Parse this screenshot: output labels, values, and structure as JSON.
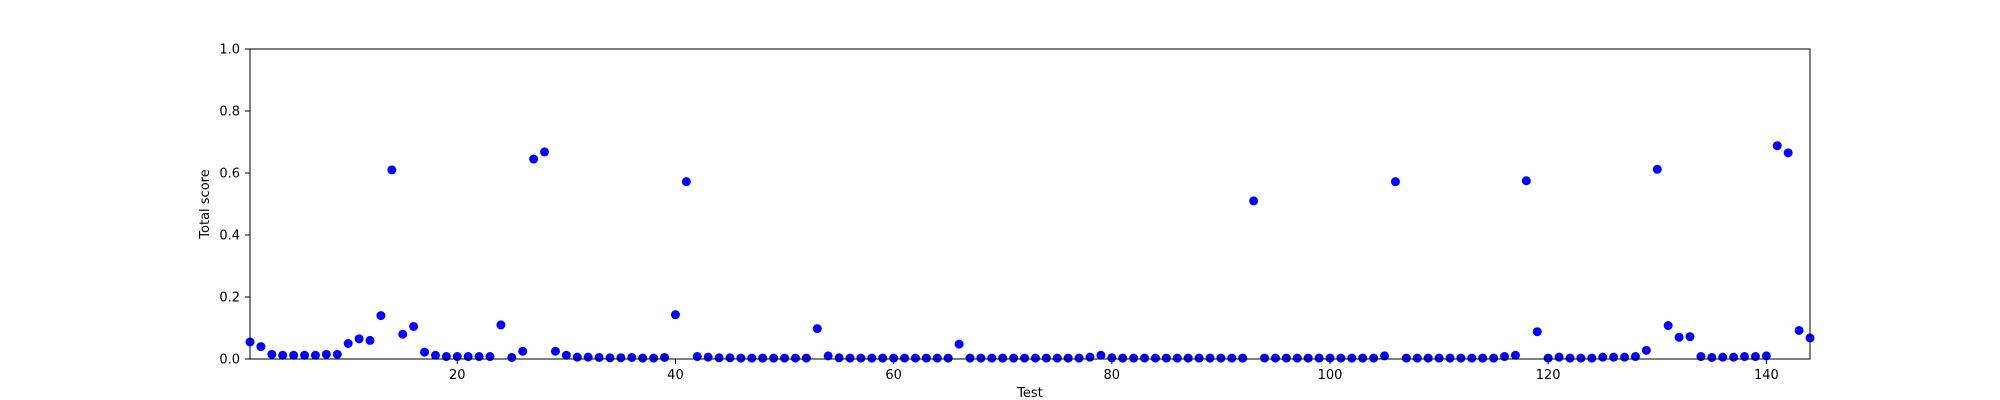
{
  "chart_data": {
    "type": "scatter",
    "xlabel": "Test",
    "ylabel": "Total score",
    "xlim": [
      1,
      144
    ],
    "ylim": [
      0.0,
      1.0
    ],
    "xticks": [
      20,
      40,
      60,
      80,
      100,
      120,
      140
    ],
    "xtick_labels": [
      "20",
      "40",
      "60",
      "80",
      "100",
      "120",
      "140"
    ],
    "yticks": [
      0.0,
      0.2,
      0.4,
      0.6,
      0.8,
      1.0
    ],
    "ytick_labels": [
      "0.0",
      "0.2",
      "0.4",
      "0.6",
      "0.8",
      "1.0"
    ],
    "grid": false,
    "marker_color": "#0000ff",
    "x": [
      1,
      2,
      3,
      4,
      5,
      6,
      7,
      8,
      9,
      10,
      11,
      12,
      13,
      14,
      15,
      16,
      17,
      18,
      19,
      20,
      21,
      22,
      23,
      24,
      25,
      26,
      27,
      28,
      29,
      30,
      31,
      32,
      33,
      34,
      35,
      36,
      37,
      38,
      39,
      40,
      41,
      42,
      43,
      44,
      45,
      46,
      47,
      48,
      49,
      50,
      51,
      52,
      53,
      54,
      55,
      56,
      57,
      58,
      59,
      60,
      61,
      62,
      63,
      64,
      65,
      66,
      67,
      68,
      69,
      70,
      71,
      72,
      73,
      74,
      75,
      76,
      77,
      78,
      79,
      80,
      81,
      82,
      83,
      84,
      85,
      86,
      87,
      88,
      89,
      90,
      91,
      92,
      93,
      94,
      95,
      96,
      97,
      98,
      99,
      100,
      101,
      102,
      103,
      104,
      105,
      106,
      107,
      108,
      109,
      110,
      111,
      112,
      113,
      114,
      115,
      116,
      117,
      118,
      119,
      120,
      121,
      122,
      123,
      124,
      125,
      126,
      127,
      128,
      129,
      130,
      131,
      132,
      133,
      134,
      135,
      136,
      137,
      138,
      139,
      140,
      141,
      142,
      143,
      144
    ],
    "y": [
      0.055,
      0.04,
      0.015,
      0.012,
      0.012,
      0.012,
      0.012,
      0.015,
      0.015,
      0.05,
      0.065,
      0.06,
      0.14,
      0.61,
      0.08,
      0.105,
      0.022,
      0.012,
      0.008,
      0.008,
      0.008,
      0.008,
      0.008,
      0.11,
      0.005,
      0.025,
      0.645,
      0.668,
      0.025,
      0.012,
      0.006,
      0.006,
      0.005,
      0.004,
      0.004,
      0.005,
      0.003,
      0.003,
      0.005,
      0.143,
      0.572,
      0.008,
      0.006,
      0.004,
      0.004,
      0.003,
      0.003,
      0.003,
      0.003,
      0.003,
      0.003,
      0.003,
      0.098,
      0.01,
      0.004,
      0.003,
      0.003,
      0.003,
      0.003,
      0.003,
      0.003,
      0.003,
      0.003,
      0.003,
      0.003,
      0.048,
      0.003,
      0.003,
      0.003,
      0.003,
      0.003,
      0.003,
      0.003,
      0.003,
      0.003,
      0.003,
      0.003,
      0.006,
      0.012,
      0.004,
      0.003,
      0.003,
      0.003,
      0.003,
      0.003,
      0.003,
      0.003,
      0.003,
      0.003,
      0.003,
      0.003,
      0.003,
      0.51,
      0.003,
      0.003,
      0.003,
      0.003,
      0.003,
      0.003,
      0.003,
      0.003,
      0.003,
      0.003,
      0.003,
      0.01,
      0.572,
      0.003,
      0.003,
      0.003,
      0.003,
      0.003,
      0.003,
      0.003,
      0.003,
      0.003,
      0.008,
      0.012,
      0.575,
      0.088,
      0.003,
      0.006,
      0.003,
      0.003,
      0.003,
      0.006,
      0.006,
      0.006,
      0.008,
      0.028,
      0.612,
      0.108,
      0.07,
      0.072,
      0.008,
      0.005,
      0.006,
      0.006,
      0.008,
      0.008,
      0.01,
      0.688,
      0.665,
      0.092,
      0.068
    ]
  }
}
